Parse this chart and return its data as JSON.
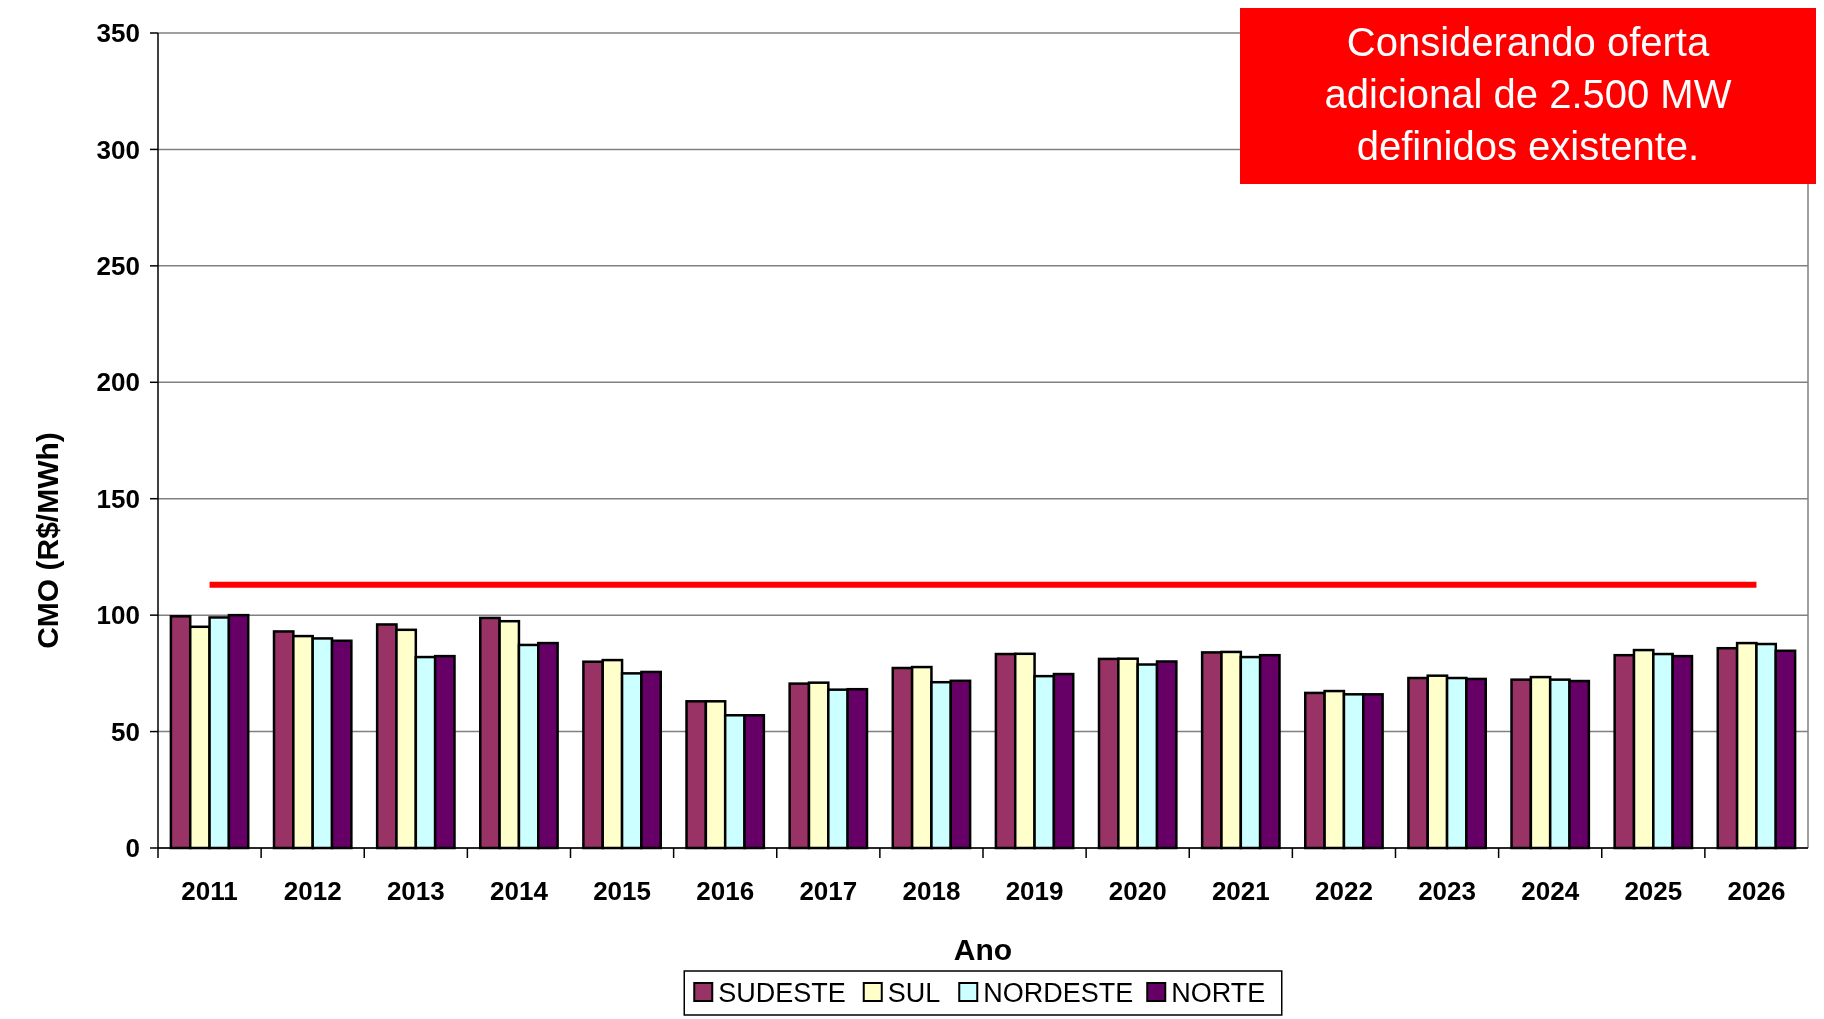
{
  "chart_data": {
    "type": "bar",
    "xlabel": "Ano",
    "ylabel": "CMO (R$/MWh)",
    "categories": [
      "2011",
      "2012",
      "2013",
      "2014",
      "2015",
      "2016",
      "2017",
      "2018",
      "2019",
      "2020",
      "2021",
      "2022",
      "2023",
      "2024",
      "2025",
      "2026"
    ],
    "series": [
      {
        "name": "SUDESTE",
        "color": "#993366",
        "values": [
          99.5,
          93,
          96,
          98.8,
          80,
          63,
          70.6,
          77.3,
          83.3,
          81.2,
          84,
          66.6,
          73,
          72.3,
          82.8,
          85.8
        ]
      },
      {
        "name": "SUL",
        "color": "#ffffcc",
        "values": [
          95,
          91,
          93.7,
          97.4,
          80.7,
          63,
          71,
          77.7,
          83.4,
          81.3,
          84.2,
          67.4,
          74,
          73.4,
          85,
          88
        ]
      },
      {
        "name": "NORDESTE",
        "color": "#ccffff",
        "values": [
          99,
          90,
          82,
          87.2,
          75,
          57,
          68,
          71.2,
          73.8,
          78.8,
          82,
          66,
          73,
          72.3,
          83.3,
          87.6
        ]
      },
      {
        "name": "NORTE",
        "color": "#660066",
        "values": [
          100,
          89,
          82.4,
          88,
          75.6,
          57,
          68.2,
          71.8,
          74.7,
          80.1,
          82.8,
          66,
          72.6,
          71.7,
          82.4,
          84.7
        ]
      },
      {
        "type": "line",
        "color": "#ff0000",
        "values": [
          113,
          113,
          113,
          113,
          113,
          113,
          113,
          113,
          113,
          113,
          113,
          113,
          113,
          113,
          113,
          113
        ]
      }
    ],
    "ylim": [
      0,
      350
    ],
    "yticks": [
      0,
      50,
      100,
      150,
      200,
      250,
      300,
      350
    ],
    "grid": "y",
    "legend": "bottom",
    "annotations": [
      "Considerando oferta adicional de 2.500 MW definidos existente."
    ]
  }
}
